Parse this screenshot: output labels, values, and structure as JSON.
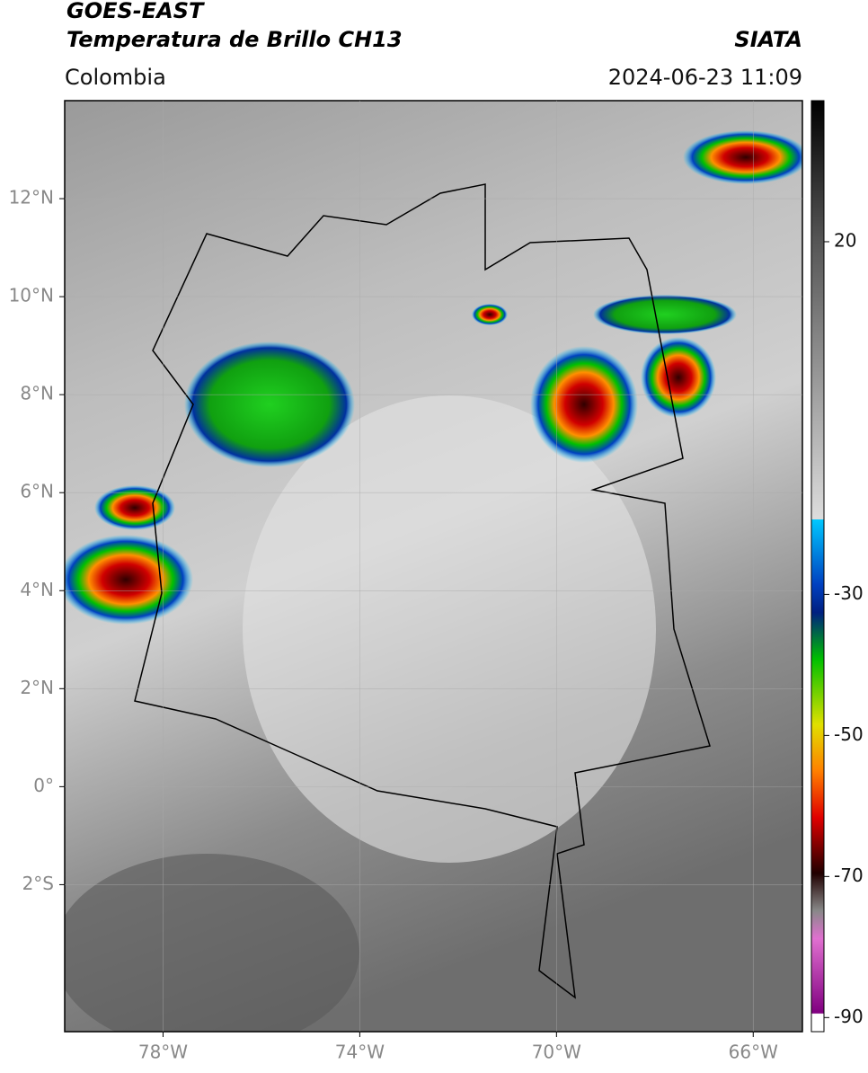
{
  "header": {
    "title": "GOES-EAST",
    "subtitle": "Temperatura de Brillo CH13",
    "source": "SIATA",
    "region": "Colombia",
    "datetime": "2024-06-23 11:09"
  },
  "map": {
    "xlim": [
      -80,
      -65
    ],
    "ylim": [
      -5,
      14
    ],
    "grid": true,
    "xticks": [
      {
        "value": -78,
        "label": "78°W"
      },
      {
        "value": -74,
        "label": "74°W"
      },
      {
        "value": -70,
        "label": "70°W"
      },
      {
        "value": -66,
        "label": "66°W"
      }
    ],
    "yticks": [
      {
        "value": 12,
        "label": "12°N"
      },
      {
        "value": 10,
        "label": "10°N"
      },
      {
        "value": 8,
        "label": "8°N"
      },
      {
        "value": 6,
        "label": "6°N"
      },
      {
        "value": 4,
        "label": "4°N"
      },
      {
        "value": 2,
        "label": "2°N"
      },
      {
        "value": 0,
        "label": "0°"
      },
      {
        "value": -2,
        "label": "2°S"
      }
    ]
  },
  "colorbar": {
    "range": [
      -92,
      40
    ],
    "ticks": [
      20,
      -30,
      -50,
      -70,
      -90
    ]
  }
}
